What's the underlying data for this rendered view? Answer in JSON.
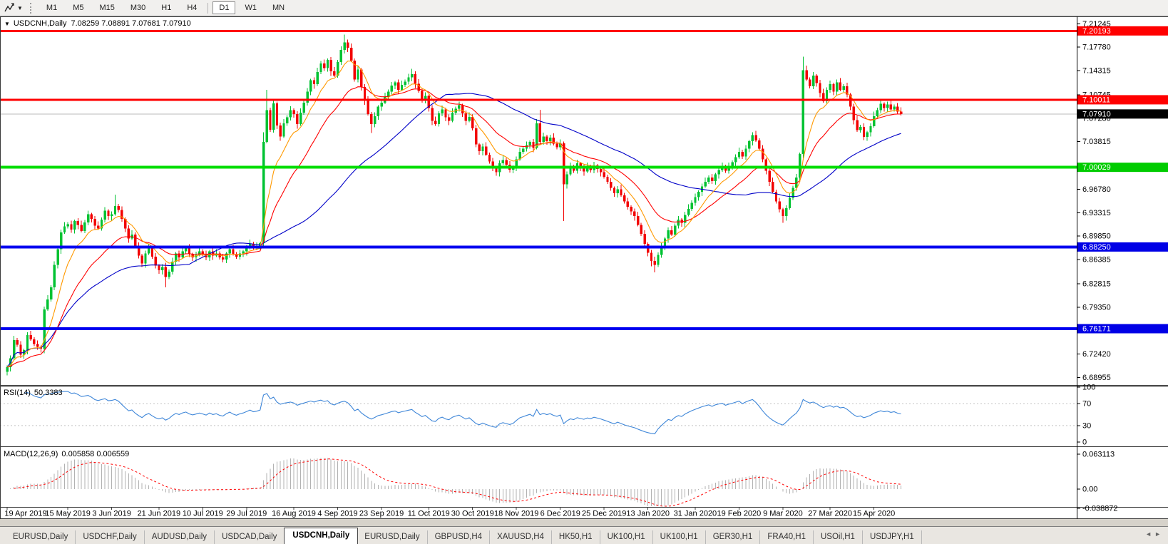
{
  "toolbar": {
    "timeframes": [
      "M1",
      "M5",
      "M15",
      "M30",
      "H1",
      "H4",
      "D1",
      "W1",
      "MN"
    ],
    "active_timeframe": "D1"
  },
  "chart": {
    "symbol_title": "USDCNH,Daily",
    "ohlc_text": "7.08259 7.08891 7.07681 7.07910"
  },
  "price_axis": {
    "ticks": [
      {
        "label": "7.21245",
        "value": 7.21245
      },
      {
        "label": "7.17780",
        "value": 7.1778
      },
      {
        "label": "7.14315",
        "value": 7.14315
      },
      {
        "label": "7.10745",
        "value": 7.10745
      },
      {
        "label": "7.07280",
        "value": 7.0728
      },
      {
        "label": "7.03815",
        "value": 7.03815
      },
      {
        "label": "6.96780",
        "value": 6.9678
      },
      {
        "label": "6.93315",
        "value": 6.93315
      },
      {
        "label": "6.89850",
        "value": 6.8985
      },
      {
        "label": "6.86385",
        "value": 6.86385
      },
      {
        "label": "6.82815",
        "value": 6.82815
      },
      {
        "label": "6.79350",
        "value": 6.7935
      },
      {
        "label": "6.75885",
        "value": 6.75885
      },
      {
        "label": "6.72420",
        "value": 6.7242
      },
      {
        "label": "6.68955",
        "value": 6.68955
      }
    ],
    "badges": [
      {
        "label": "7.20193",
        "value": 7.20193,
        "color": "#FF0000"
      },
      {
        "label": "7.10011",
        "value": 7.10011,
        "color": "#FF0000"
      },
      {
        "label": "7.00029",
        "value": 7.00029,
        "color": "#00CC00"
      },
      {
        "label": "6.88250",
        "value": 6.8825,
        "color": "#0000E6"
      },
      {
        "label": "6.76171",
        "value": 6.76171,
        "color": "#0000E6"
      },
      {
        "label": "7.07910",
        "value": 7.0791,
        "color": "#000000"
      }
    ]
  },
  "hlines": [
    {
      "price": 7.20193,
      "color": "#FF0000",
      "width": 3
    },
    {
      "price": 7.10011,
      "color": "#FF0000",
      "width": 3
    },
    {
      "price": 7.00029,
      "color": "#00DD00",
      "width": 4
    },
    {
      "price": 6.8825,
      "color": "#0000F0",
      "width": 4
    },
    {
      "price": 6.76171,
      "color": "#0000F0",
      "width": 4
    }
  ],
  "panels": {
    "rsi": {
      "name_label": "RSI(14)",
      "value_label": "50.3383",
      "ticks": [
        {
          "label": "100",
          "value": 100
        },
        {
          "label": "70",
          "value": 70
        },
        {
          "label": "30",
          "value": 30
        },
        {
          "label": "0",
          "value": 0
        }
      ],
      "levels": [
        70,
        30
      ],
      "line_color": "#3E86D8"
    },
    "macd": {
      "name_label": "MACD(12,26,9)",
      "value_label": "0.005858 0.006559",
      "ticks": [
        {
          "label": "0.063113",
          "value": 0.063113
        },
        {
          "label": "0.00",
          "value": 0
        },
        {
          "label": "-0.038872",
          "value": -0.038872
        }
      ],
      "hist_color": "#B2B2B2",
      "signal_color": "#FF0000"
    }
  },
  "date_axis": {
    "labels": [
      {
        "text": "19 Apr 2019",
        "index": 0
      },
      {
        "text": "15 May 2019",
        "index": 18
      },
      {
        "text": "3 Jun 2019",
        "index": 31
      },
      {
        "text": "21 Jun 2019",
        "index": 45
      },
      {
        "text": "10 Jul 2019",
        "index": 58
      },
      {
        "text": "29 Jul 2019",
        "index": 71
      },
      {
        "text": "16 Aug 2019",
        "index": 85
      },
      {
        "text": "4 Sep 2019",
        "index": 98
      },
      {
        "text": "23 Sep 2019",
        "index": 111
      },
      {
        "text": "11 Oct 2019",
        "index": 125
      },
      {
        "text": "30 Oct 2019",
        "index": 138
      },
      {
        "text": "18 Nov 2019",
        "index": 151
      },
      {
        "text": "6 Dec 2019",
        "index": 164
      },
      {
        "text": "25 Dec 2019",
        "index": 177
      },
      {
        "text": "13 Jan 2020",
        "index": 190
      },
      {
        "text": "31 Jan 2020",
        "index": 204
      },
      {
        "text": "19 Feb 2020",
        "index": 217
      },
      {
        "text": "9 Mar 2020",
        "index": 230
      },
      {
        "text": "27 Mar 2020",
        "index": 244
      },
      {
        "text": "15 Apr 2020",
        "index": 257
      }
    ]
  },
  "tabs": {
    "active_index": 4,
    "items": [
      "EURUSD,Daily",
      "USDCHF,Daily",
      "AUDUSD,Daily",
      "USDCAD,Daily",
      "USDCNH,Daily",
      "EURUSD,Daily",
      "GBPUSD,H4",
      "XAUUSD,H4",
      "HK50,H1",
      "UK100,H1",
      "UK100,H1",
      "GER30,H1",
      "FRA40,H1",
      "USOil,H1",
      "USDJPY,H1"
    ]
  },
  "chart_data": {
    "type": "candlestick",
    "symbol": "USDCNH",
    "timeframe": "Daily",
    "title": "USDCNH,Daily",
    "current_price": 7.0791,
    "price_axis_range": {
      "top": 7.2223,
      "bottom": 6.6795
    },
    "macd_axis_range": {
      "top": 0.063113,
      "bottom": -0.038872
    },
    "rsi_range": [
      0,
      100
    ],
    "first_open": 6.698,
    "closes": [
      6.705,
      6.718,
      6.745,
      6.738,
      6.723,
      6.73,
      6.752,
      6.746,
      6.739,
      6.735,
      6.732,
      6.79,
      6.805,
      6.823,
      6.856,
      6.879,
      6.904,
      6.913,
      6.916,
      6.908,
      6.921,
      6.915,
      6.906,
      6.919,
      6.931,
      6.924,
      6.914,
      6.91,
      6.923,
      6.936,
      6.928,
      6.931,
      6.943,
      6.937,
      6.924,
      6.91,
      6.895,
      6.901,
      6.884,
      6.87,
      6.858,
      6.873,
      6.881,
      6.868,
      6.855,
      6.848,
      6.853,
      6.838,
      6.846,
      6.861,
      6.873,
      6.867,
      6.876,
      6.881,
      6.872,
      6.867,
      6.871,
      6.876,
      6.872,
      6.867,
      6.876,
      6.87,
      6.873,
      6.867,
      6.864,
      6.873,
      6.879,
      6.872,
      6.868,
      6.873,
      6.876,
      6.881,
      6.887,
      6.882,
      6.884,
      6.888,
      7.038,
      7.085,
      7.056,
      7.095,
      7.062,
      7.046,
      7.065,
      7.074,
      7.085,
      7.079,
      7.064,
      7.081,
      7.096,
      7.112,
      7.129,
      7.123,
      7.141,
      7.154,
      7.147,
      7.159,
      7.142,
      7.136,
      7.156,
      7.174,
      7.185,
      7.177,
      7.158,
      7.13,
      7.145,
      7.119,
      7.099,
      7.079,
      7.064,
      7.076,
      7.09,
      7.096,
      7.104,
      7.112,
      7.121,
      7.126,
      7.115,
      7.122,
      7.127,
      7.133,
      7.138,
      7.124,
      7.113,
      7.099,
      7.106,
      7.088,
      7.069,
      7.064,
      7.08,
      7.086,
      7.074,
      7.069,
      7.081,
      7.087,
      7.092,
      7.08,
      7.069,
      7.075,
      7.058,
      7.034,
      7.024,
      7.031,
      7.019,
      7.009,
      6.999,
      6.993,
      7.006,
      7.011,
      7.004,
      6.997,
      7.001,
      7.012,
      7.023,
      7.028,
      7.033,
      7.038,
      7.029,
      7.065,
      7.038,
      7.046,
      7.039,
      7.044,
      7.035,
      7.03,
      7.036,
      6.975,
      6.99,
      7.001,
      6.995,
      7.006,
      7.0,
      6.994,
      7.001,
      6.996,
      7.003,
      6.998,
      6.993,
      6.986,
      6.979,
      6.97,
      6.962,
      6.968,
      6.959,
      6.95,
      6.942,
      6.935,
      6.928,
      6.915,
      6.902,
      6.887,
      6.874,
      6.862,
      6.856,
      6.871,
      6.883,
      6.895,
      6.907,
      6.901,
      6.914,
      6.923,
      6.918,
      6.93,
      6.939,
      6.948,
      6.956,
      6.964,
      6.972,
      6.979,
      6.985,
      6.98,
      6.99,
      6.996,
      7.001,
      6.995,
      7.002,
      7.008,
      7.015,
      7.023,
      7.016,
      7.028,
      7.039,
      7.048,
      7.04,
      7.028,
      7.012,
      6.995,
      6.979,
      6.964,
      6.95,
      6.938,
      6.928,
      6.94,
      6.955,
      6.97,
      6.985,
      7.02,
      7.144,
      7.13,
      7.12,
      7.136,
      7.125,
      7.11,
      7.098,
      7.115,
      7.123,
      7.112,
      7.126,
      7.115,
      7.12,
      7.108,
      7.09,
      7.07,
      7.055,
      7.06,
      7.045,
      7.052,
      7.061,
      7.076,
      7.085,
      7.094,
      7.088,
      7.093,
      7.086,
      7.09,
      7.0826,
      7.0791
    ],
    "overrides": {
      "32": {
        "h": 6.96
      },
      "47": {
        "l": 6.823
      },
      "76": {
        "o": 6.888,
        "h": 7.052,
        "l": 6.884
      },
      "77": {
        "h": 7.115
      },
      "100": {
        "h": 7.1965
      },
      "108": {
        "l": 7.051
      },
      "120": {
        "h": 7.146
      },
      "158": {
        "h": 7.0855
      },
      "165": {
        "l": 6.921
      },
      "191": {
        "l": 6.854
      },
      "192": {
        "l": 6.845
      },
      "230": {
        "l": 6.918
      },
      "236": {
        "h": 7.164
      },
      "265": {
        "o": 7.08259,
        "h": 7.08891,
        "l": 7.07681,
        "c": 7.0791
      }
    },
    "bull_color": "#00C232",
    "bear_color": "#F20000",
    "current_price_line_color": "#BBBBBB",
    "moving_averages": [
      {
        "name": "ma-fast",
        "type": "ema",
        "period": 9,
        "color": "#FF9900"
      },
      {
        "name": "ma-mid",
        "type": "ema",
        "period": 22,
        "color": "#FF0000"
      },
      {
        "name": "ma-slow",
        "type": "sma",
        "period": 55,
        "color": "#0000C8"
      }
    ],
    "rsi_period": 14,
    "macd_params": [
      12,
      26,
      9
    ]
  }
}
